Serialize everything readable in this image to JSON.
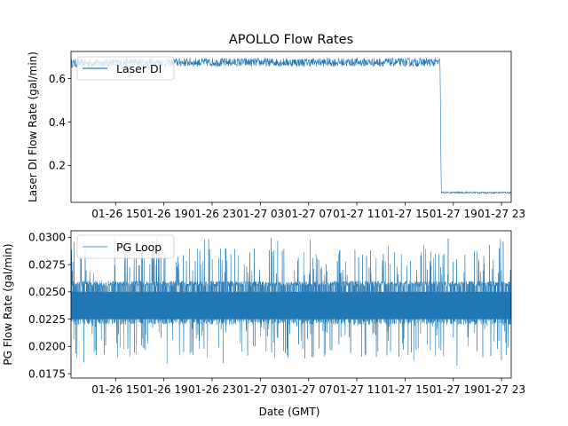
{
  "figure_title": "APOLLO Flow Rates",
  "chart_data": [
    {
      "type": "line",
      "title": "APOLLO Flow Rates",
      "xlabel": "",
      "ylabel": "Laser DI Flow Rate (gal/min)",
      "x_tick_labels": [
        "01-26 15",
        "01-26 19",
        "01-26 23",
        "01-27 03",
        "01-27 07",
        "01-27 11",
        "01-27 15",
        "01-27 19",
        "01-27 23"
      ],
      "x_tick_hours": [
        15,
        19,
        23,
        27,
        31,
        35,
        39,
        43,
        47
      ],
      "xlim_hours": [
        11.3,
        47.8
      ],
      "yticks": [
        0.2,
        0.4,
        0.6
      ],
      "ylim": [
        0.03,
        0.725
      ],
      "legend": "upper-left",
      "series": [
        {
          "name": "Laser DI",
          "color": "#1f77b4",
          "x_hours": [
            11.3,
            16.5,
            23.0,
            27.0,
            32.0,
            37.5,
            41.9,
            42.0,
            47.8
          ],
          "values": [
            0.67,
            0.675,
            0.675,
            0.675,
            0.675,
            0.675,
            0.675,
            0.075,
            0.075
          ],
          "noise_pp": [
            0.02,
            0.02,
            0.02,
            0.02,
            0.02,
            0.02,
            0.02,
            0.004,
            0.004
          ]
        }
      ]
    },
    {
      "type": "line",
      "title": "",
      "xlabel": "Date (GMT)",
      "ylabel": "PG Flow Rate (gal/min)",
      "x_tick_labels": [
        "01-26 15",
        "01-26 19",
        "01-26 23",
        "01-27 03",
        "01-27 07",
        "01-27 11",
        "01-27 15",
        "01-27 19",
        "01-27 23"
      ],
      "x_tick_hours": [
        15,
        19,
        23,
        27,
        31,
        35,
        39,
        43,
        47
      ],
      "xlim_hours": [
        11.3,
        47.8
      ],
      "yticks": [
        0.0175,
        0.02,
        0.0225,
        0.025,
        0.0275,
        0.03
      ],
      "ytick_labels": [
        "0.0175",
        "0.0200",
        "0.0225",
        "0.0250",
        "0.0275",
        "0.0300"
      ],
      "ylim": [
        0.0171,
        0.0306
      ],
      "legend": "upper-left",
      "series": [
        {
          "name": "PG Loop",
          "color": "#1f77b4",
          "band_low": 0.0225,
          "band_high": 0.025,
          "occasional_low": 0.022,
          "occasional_high": 0.026,
          "min": 0.018,
          "max": 0.03
        }
      ]
    }
  ]
}
